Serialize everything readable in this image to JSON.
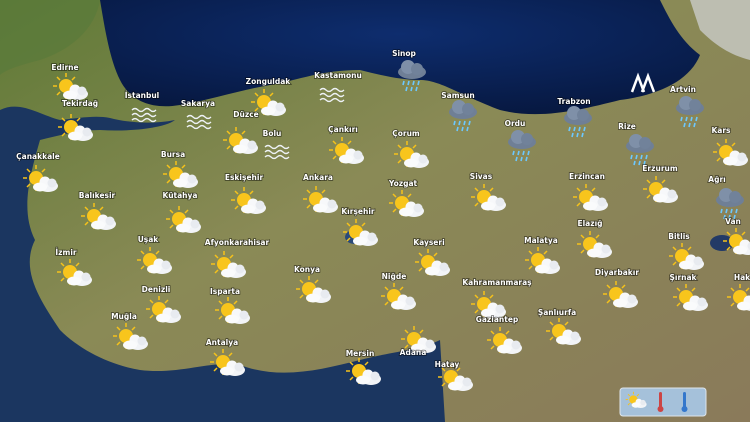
{
  "map": {
    "cities": [
      "Edirne",
      "Tekirdağ",
      "İstanbul",
      "Sakarya",
      "Zonguldak",
      "Kastamonu",
      "Sinop",
      "Samsun",
      "Trabzon",
      "Artvin",
      "Çanakkale",
      "Bursa",
      "Düzce",
      "Bolu",
      "Çankırı",
      "Çorum",
      "Ordu",
      "Rize",
      "Kars",
      "Balıkesir",
      "Kütahya",
      "Eskişehir",
      "Ankara",
      "Yozgat",
      "Sivas",
      "Erzincan",
      "Erzurum",
      "Ağrı",
      "Kırşehir",
      "Kayseri",
      "Malatya",
      "Elazığ",
      "Bitlis",
      "Van",
      "İzmir",
      "Uşak",
      "Afyonkarahisar",
      "Konya",
      "Niğde",
      "Kahramanmaraş",
      "Diyarbakır",
      "Şırnak",
      "Hak",
      "Denizli",
      "Isparta",
      "Muğla",
      "Gaziantep",
      "Şanlıurfa",
      "Antalya",
      "Mersin",
      "Adana",
      "Hatay"
    ]
  }
}
